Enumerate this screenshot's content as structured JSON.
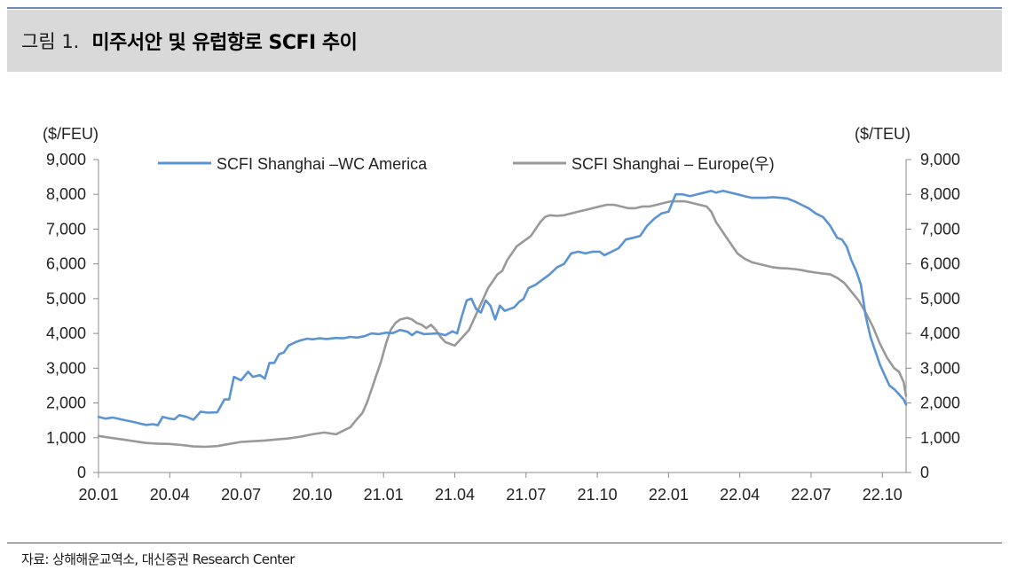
{
  "header": {
    "figure_label": "그림 1.",
    "title": "미주서안 및 유럽항로 SCFI 추이"
  },
  "source": "자료: 상해해운교역소, 대신증권 Research Center",
  "chart_data": {
    "type": "line",
    "title": "미주서안 및 유럽항로 SCFI 추이",
    "left_unit": "($/FEU)",
    "right_unit": "($/TEU)",
    "ylim_left": [
      0,
      9000
    ],
    "ylim_right": [
      0,
      9000
    ],
    "y_ticks": [
      0,
      1000,
      2000,
      3000,
      4000,
      5000,
      6000,
      7000,
      8000,
      9000
    ],
    "y_tick_labels": [
      "0",
      "1,000",
      "2,000",
      "3,000",
      "4,000",
      "5,000",
      "6,000",
      "7,000",
      "8,000",
      "9,000"
    ],
    "x_range": [
      0,
      34
    ],
    "x_ticks": [
      0,
      3,
      6,
      9,
      12,
      15,
      18,
      21,
      24,
      27,
      30,
      33
    ],
    "x_tick_labels": [
      "20.01",
      "20.04",
      "20.07",
      "20.10",
      "21.01",
      "21.04",
      "21.07",
      "21.10",
      "22.01",
      "22.04",
      "22.07",
      "22.10"
    ],
    "x_unit": "months since 2020.01",
    "grid": false,
    "legend_position": "top",
    "series": [
      {
        "name": "SCFI Shanghai –WC America",
        "axis": "left",
        "color": "#5b93d3",
        "points": [
          [
            0.0,
            1600
          ],
          [
            0.3,
            1550
          ],
          [
            0.6,
            1580
          ],
          [
            1.0,
            1520
          ],
          [
            1.5,
            1450
          ],
          [
            1.8,
            1400
          ],
          [
            2.0,
            1370
          ],
          [
            2.3,
            1390
          ],
          [
            2.5,
            1360
          ],
          [
            2.7,
            1600
          ],
          [
            3.0,
            1550
          ],
          [
            3.2,
            1530
          ],
          [
            3.4,
            1650
          ],
          [
            3.7,
            1600
          ],
          [
            4.0,
            1520
          ],
          [
            4.3,
            1750
          ],
          [
            4.6,
            1720
          ],
          [
            5.0,
            1730
          ],
          [
            5.3,
            2100
          ],
          [
            5.5,
            2100
          ],
          [
            5.7,
            2750
          ],
          [
            6.0,
            2650
          ],
          [
            6.3,
            2900
          ],
          [
            6.5,
            2750
          ],
          [
            6.8,
            2800
          ],
          [
            7.0,
            2700
          ],
          [
            7.2,
            3150
          ],
          [
            7.4,
            3150
          ],
          [
            7.6,
            3400
          ],
          [
            7.8,
            3450
          ],
          [
            8.0,
            3650
          ],
          [
            8.3,
            3750
          ],
          [
            8.5,
            3800
          ],
          [
            8.8,
            3850
          ],
          [
            9.0,
            3830
          ],
          [
            9.3,
            3860
          ],
          [
            9.6,
            3840
          ],
          [
            10.0,
            3870
          ],
          [
            10.3,
            3860
          ],
          [
            10.6,
            3900
          ],
          [
            10.9,
            3880
          ],
          [
            11.2,
            3920
          ],
          [
            11.5,
            4000
          ],
          [
            11.8,
            3980
          ],
          [
            12.1,
            4020
          ],
          [
            12.4,
            4010
          ],
          [
            12.7,
            4100
          ],
          [
            13.0,
            4050
          ],
          [
            13.2,
            3950
          ],
          [
            13.4,
            4050
          ],
          [
            13.7,
            3980
          ],
          [
            14.0,
            3990
          ],
          [
            14.3,
            4000
          ],
          [
            14.6,
            3950
          ],
          [
            14.9,
            4060
          ],
          [
            15.1,
            4000
          ],
          [
            15.3,
            4500
          ],
          [
            15.5,
            4950
          ],
          [
            15.7,
            5000
          ],
          [
            15.9,
            4700
          ],
          [
            16.1,
            4600
          ],
          [
            16.3,
            4950
          ],
          [
            16.5,
            4800
          ],
          [
            16.7,
            4400
          ],
          [
            16.9,
            4800
          ],
          [
            17.1,
            4650
          ],
          [
            17.3,
            4700
          ],
          [
            17.5,
            4750
          ],
          [
            17.7,
            4900
          ],
          [
            17.9,
            5000
          ],
          [
            18.1,
            5300
          ],
          [
            18.4,
            5400
          ],
          [
            18.7,
            5550
          ],
          [
            19.0,
            5700
          ],
          [
            19.3,
            5900
          ],
          [
            19.6,
            6000
          ],
          [
            19.9,
            6300
          ],
          [
            20.2,
            6350
          ],
          [
            20.5,
            6300
          ],
          [
            20.8,
            6350
          ],
          [
            21.1,
            6350
          ],
          [
            21.3,
            6250
          ],
          [
            21.6,
            6350
          ],
          [
            21.9,
            6450
          ],
          [
            22.2,
            6700
          ],
          [
            22.5,
            6750
          ],
          [
            22.8,
            6800
          ],
          [
            23.1,
            7100
          ],
          [
            23.4,
            7300
          ],
          [
            23.7,
            7450
          ],
          [
            24.0,
            7500
          ],
          [
            24.3,
            8000
          ],
          [
            24.6,
            8000
          ],
          [
            24.9,
            7950
          ],
          [
            25.2,
            8000
          ],
          [
            25.5,
            8050
          ],
          [
            25.8,
            8100
          ],
          [
            26.0,
            8050
          ],
          [
            26.3,
            8100
          ],
          [
            26.6,
            8050
          ],
          [
            26.9,
            8000
          ],
          [
            27.2,
            7950
          ],
          [
            27.5,
            7900
          ],
          [
            27.8,
            7900
          ],
          [
            28.1,
            7900
          ],
          [
            28.4,
            7920
          ],
          [
            28.7,
            7900
          ],
          [
            29.0,
            7880
          ],
          [
            29.3,
            7800
          ],
          [
            29.6,
            7700
          ],
          [
            29.9,
            7600
          ],
          [
            30.2,
            7450
          ],
          [
            30.5,
            7350
          ],
          [
            30.8,
            7100
          ],
          [
            31.1,
            6750
          ],
          [
            31.3,
            6700
          ],
          [
            31.5,
            6500
          ],
          [
            31.7,
            6100
          ],
          [
            31.9,
            5800
          ],
          [
            32.1,
            5400
          ],
          [
            32.3,
            4500
          ],
          [
            32.5,
            3900
          ],
          [
            32.7,
            3500
          ],
          [
            32.9,
            3100
          ],
          [
            33.1,
            2800
          ],
          [
            33.3,
            2500
          ],
          [
            33.5,
            2400
          ],
          [
            33.7,
            2250
          ],
          [
            33.9,
            2100
          ],
          [
            34.0,
            1950
          ]
        ]
      },
      {
        "name": "SCFI Shanghai – Europe(우)",
        "axis": "right",
        "color": "#999999",
        "points": [
          [
            0.0,
            1050
          ],
          [
            0.5,
            1000
          ],
          [
            1.0,
            950
          ],
          [
            1.5,
            900
          ],
          [
            2.0,
            850
          ],
          [
            2.5,
            830
          ],
          [
            3.0,
            820
          ],
          [
            3.5,
            790
          ],
          [
            4.0,
            750
          ],
          [
            4.5,
            740
          ],
          [
            5.0,
            760
          ],
          [
            5.5,
            820
          ],
          [
            6.0,
            880
          ],
          [
            6.5,
            900
          ],
          [
            7.0,
            920
          ],
          [
            7.5,
            950
          ],
          [
            8.0,
            980
          ],
          [
            8.5,
            1030
          ],
          [
            9.0,
            1100
          ],
          [
            9.5,
            1150
          ],
          [
            10.0,
            1100
          ],
          [
            10.3,
            1200
          ],
          [
            10.6,
            1300
          ],
          [
            10.9,
            1550
          ],
          [
            11.1,
            1700
          ],
          [
            11.3,
            2000
          ],
          [
            11.5,
            2400
          ],
          [
            11.7,
            2800
          ],
          [
            11.9,
            3200
          ],
          [
            12.1,
            3700
          ],
          [
            12.3,
            4100
          ],
          [
            12.5,
            4300
          ],
          [
            12.7,
            4400
          ],
          [
            13.0,
            4450
          ],
          [
            13.2,
            4400
          ],
          [
            13.4,
            4300
          ],
          [
            13.6,
            4250
          ],
          [
            13.8,
            4150
          ],
          [
            14.0,
            4250
          ],
          [
            14.2,
            4100
          ],
          [
            14.4,
            3900
          ],
          [
            14.6,
            3750
          ],
          [
            14.8,
            3700
          ],
          [
            15.0,
            3650
          ],
          [
            15.2,
            3800
          ],
          [
            15.4,
            3950
          ],
          [
            15.6,
            4100
          ],
          [
            15.8,
            4400
          ],
          [
            16.0,
            4700
          ],
          [
            16.2,
            5000
          ],
          [
            16.4,
            5300
          ],
          [
            16.6,
            5500
          ],
          [
            16.8,
            5700
          ],
          [
            17.0,
            5800
          ],
          [
            17.2,
            6100
          ],
          [
            17.4,
            6300
          ],
          [
            17.6,
            6500
          ],
          [
            17.8,
            6600
          ],
          [
            18.0,
            6700
          ],
          [
            18.2,
            6800
          ],
          [
            18.4,
            7000
          ],
          [
            18.6,
            7200
          ],
          [
            18.8,
            7350
          ],
          [
            19.0,
            7400
          ],
          [
            19.3,
            7380
          ],
          [
            19.6,
            7400
          ],
          [
            19.9,
            7450
          ],
          [
            20.2,
            7500
          ],
          [
            20.5,
            7550
          ],
          [
            20.8,
            7600
          ],
          [
            21.1,
            7650
          ],
          [
            21.4,
            7700
          ],
          [
            21.7,
            7700
          ],
          [
            22.0,
            7650
          ],
          [
            22.3,
            7600
          ],
          [
            22.6,
            7600
          ],
          [
            22.9,
            7650
          ],
          [
            23.2,
            7650
          ],
          [
            23.5,
            7700
          ],
          [
            23.8,
            7750
          ],
          [
            24.1,
            7800
          ],
          [
            24.4,
            7800
          ],
          [
            24.7,
            7800
          ],
          [
            25.0,
            7750
          ],
          [
            25.3,
            7700
          ],
          [
            25.6,
            7650
          ],
          [
            25.8,
            7500
          ],
          [
            26.0,
            7200
          ],
          [
            26.3,
            6900
          ],
          [
            26.6,
            6600
          ],
          [
            26.9,
            6300
          ],
          [
            27.2,
            6150
          ],
          [
            27.5,
            6050
          ],
          [
            27.8,
            6000
          ],
          [
            28.1,
            5950
          ],
          [
            28.4,
            5900
          ],
          [
            28.7,
            5880
          ],
          [
            29.0,
            5870
          ],
          [
            29.3,
            5850
          ],
          [
            29.6,
            5820
          ],
          [
            29.9,
            5780
          ],
          [
            30.2,
            5750
          ],
          [
            30.5,
            5720
          ],
          [
            30.8,
            5700
          ],
          [
            31.1,
            5600
          ],
          [
            31.4,
            5450
          ],
          [
            31.7,
            5200
          ],
          [
            32.0,
            4950
          ],
          [
            32.3,
            4600
          ],
          [
            32.6,
            4200
          ],
          [
            32.9,
            3700
          ],
          [
            33.2,
            3300
          ],
          [
            33.5,
            3000
          ],
          [
            33.7,
            2900
          ],
          [
            33.9,
            2600
          ],
          [
            34.0,
            2200
          ]
        ]
      }
    ]
  }
}
